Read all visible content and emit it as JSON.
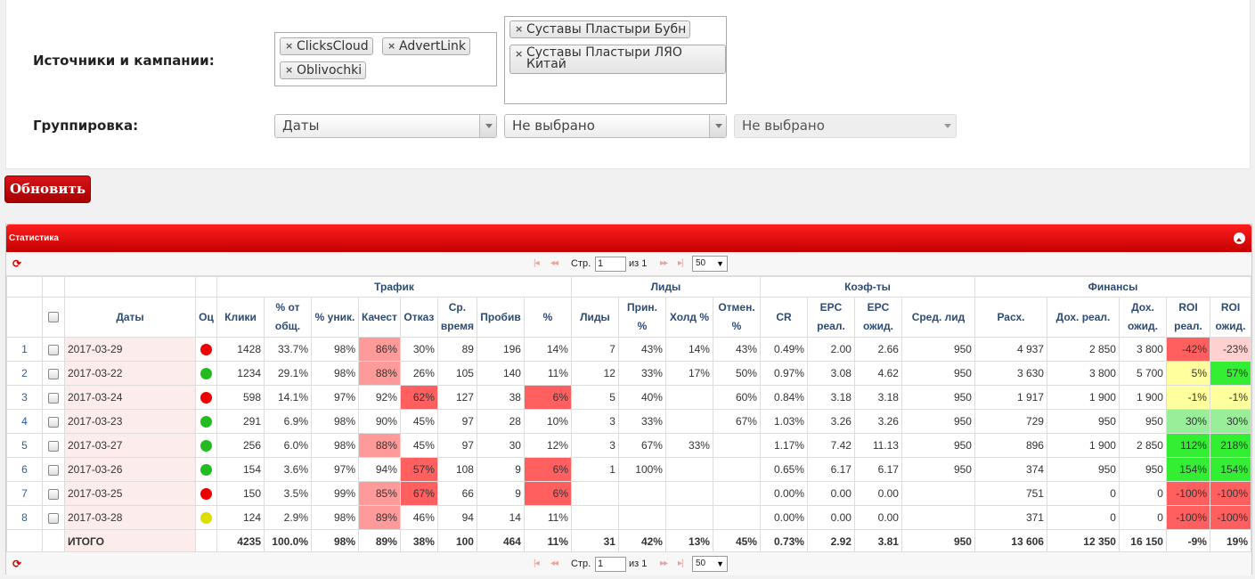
{
  "filters": {
    "sources_label": "Источники и кампании:",
    "grouping_label": "Группировка:",
    "sources": [
      "ClicksCloud",
      "AdvertLink",
      "Oblivochki"
    ],
    "campaigns": [
      "Суставы Пластыри Бубн",
      "Суставы Пластыри ЛЯО Китай"
    ],
    "group1": "Даты",
    "group2": "Не выбрано",
    "group3": "Не выбрано"
  },
  "update_button": "Обновить",
  "panel": {
    "title": "Статистика"
  },
  "pager": {
    "page_label": "Стр.",
    "page_value": "1",
    "of_label": "из 1",
    "page_size": "50"
  },
  "colors": {
    "bad": "#ff5f5f",
    "bad_light": "#ff9a9a",
    "bad_pale": "#ffd0d0",
    "warn": "#ffff9e",
    "good": "#33ee33",
    "good_light": "#99ee99",
    "dot_red": "#ee0000",
    "dot_green": "#22bb22",
    "dot_yellow": "#dddd00"
  },
  "table": {
    "groups": [
      "Трафик",
      "Лиды",
      "Коэф-ты",
      "Финансы"
    ],
    "columns": [
      "Даты",
      "Оц",
      "Клики",
      "% от общ.",
      "% уник.",
      "Качест",
      "Отказ",
      "Ср. время",
      "Пробив",
      "%",
      "Лиды",
      "Прин. %",
      "Холд %",
      "Отмен. %",
      "CR",
      "EPC реал.",
      "EPC ожид.",
      "Сред. лид",
      "Расх.",
      "Дох. реал.",
      "Дох. ожид.",
      "ROI реал.",
      "ROI ожид."
    ],
    "rows": [
      {
        "n": "1",
        "date": "2017-03-29",
        "dot": "red",
        "clicks": "1428",
        "pct": "33.7%",
        "uniq": "98%",
        "qual": "86%",
        "bounce": "30%",
        "time": "89",
        "prob": "196",
        "pp": "14%",
        "leads": "7",
        "acc": "43%",
        "hold": "14%",
        "canc": "43%",
        "cr": "0.49%",
        "epcr": "2.00",
        "epce": "2.66",
        "avg": "950",
        "exp": "4 937",
        "incr": "2 850",
        "ince": "3 800",
        "roir": "-42%",
        "roie": "-23%"
      },
      {
        "n": "2",
        "date": "2017-03-22",
        "dot": "green",
        "clicks": "1234",
        "pct": "29.1%",
        "uniq": "98%",
        "qual": "88%",
        "bounce": "26%",
        "time": "105",
        "prob": "140",
        "pp": "11%",
        "leads": "12",
        "acc": "33%",
        "hold": "17%",
        "canc": "50%",
        "cr": "0.97%",
        "epcr": "3.08",
        "epce": "4.62",
        "avg": "950",
        "exp": "3 630",
        "incr": "3 800",
        "ince": "5 700",
        "roir": "5%",
        "roie": "57%"
      },
      {
        "n": "3",
        "date": "2017-03-24",
        "dot": "red",
        "clicks": "598",
        "pct": "14.1%",
        "uniq": "97%",
        "qual": "92%",
        "bounce": "62%",
        "time": "127",
        "prob": "38",
        "pp": "6%",
        "leads": "5",
        "acc": "40%",
        "hold": "",
        "canc": "60%",
        "cr": "0.84%",
        "epcr": "3.18",
        "epce": "3.18",
        "avg": "950",
        "exp": "1 917",
        "incr": "1 900",
        "ince": "1 900",
        "roir": "-1%",
        "roie": "-1%"
      },
      {
        "n": "4",
        "date": "2017-03-23",
        "dot": "green",
        "clicks": "291",
        "pct": "6.9%",
        "uniq": "98%",
        "qual": "90%",
        "bounce": "45%",
        "time": "97",
        "prob": "28",
        "pp": "10%",
        "leads": "3",
        "acc": "33%",
        "hold": "",
        "canc": "67%",
        "cr": "1.03%",
        "epcr": "3.26",
        "epce": "3.26",
        "avg": "950",
        "exp": "729",
        "incr": "950",
        "ince": "950",
        "roir": "30%",
        "roie": "30%"
      },
      {
        "n": "5",
        "date": "2017-03-27",
        "dot": "green",
        "clicks": "256",
        "pct": "6.0%",
        "uniq": "98%",
        "qual": "88%",
        "bounce": "45%",
        "time": "97",
        "prob": "30",
        "pp": "12%",
        "leads": "3",
        "acc": "67%",
        "hold": "33%",
        "canc": "",
        "cr": "1.17%",
        "epcr": "7.42",
        "epce": "11.13",
        "avg": "950",
        "exp": "896",
        "incr": "1 900",
        "ince": "2 850",
        "roir": "112%",
        "roie": "218%"
      },
      {
        "n": "6",
        "date": "2017-03-26",
        "dot": "green",
        "clicks": "154",
        "pct": "3.6%",
        "uniq": "97%",
        "qual": "94%",
        "bounce": "57%",
        "time": "108",
        "prob": "9",
        "pp": "6%",
        "leads": "1",
        "acc": "100%",
        "hold": "",
        "canc": "",
        "cr": "0.65%",
        "epcr": "6.17",
        "epce": "6.17",
        "avg": "950",
        "exp": "374",
        "incr": "950",
        "ince": "950",
        "roir": "154%",
        "roie": "154%"
      },
      {
        "n": "7",
        "date": "2017-03-25",
        "dot": "red",
        "clicks": "150",
        "pct": "3.5%",
        "uniq": "99%",
        "qual": "85%",
        "bounce": "67%",
        "time": "66",
        "prob": "9",
        "pp": "6%",
        "leads": "",
        "acc": "",
        "hold": "",
        "canc": "",
        "cr": "0.00%",
        "epcr": "0.00",
        "epce": "0.00",
        "avg": "",
        "exp": "751",
        "incr": "0",
        "ince": "0",
        "roir": "-100%",
        "roie": "-100%"
      },
      {
        "n": "8",
        "date": "2017-03-28",
        "dot": "yellow",
        "clicks": "124",
        "pct": "2.9%",
        "uniq": "98%",
        "qual": "89%",
        "bounce": "46%",
        "time": "94",
        "prob": "14",
        "pp": "11%",
        "leads": "",
        "acc": "",
        "hold": "",
        "canc": "",
        "cr": "0.00%",
        "epcr": "0.00",
        "epce": "0.00",
        "avg": "",
        "exp": "371",
        "incr": "0",
        "ince": "0",
        "roir": "-100%",
        "roie": "-100%"
      }
    ],
    "total": {
      "label": "ИТОГО",
      "clicks": "4235",
      "pct": "100.0%",
      "uniq": "98%",
      "qual": "89%",
      "bounce": "38%",
      "time": "100",
      "prob": "464",
      "pp": "11%",
      "leads": "31",
      "acc": "42%",
      "hold": "13%",
      "canc": "45%",
      "cr": "0.73%",
      "epcr": "2.92",
      "epce": "3.81",
      "avg": "950",
      "exp": "13 606",
      "incr": "12 350",
      "ince": "16 150",
      "roir": "-9%",
      "roie": "19%"
    }
  },
  "cell_colors": {
    "qual": [
      "bad_light",
      "bad_light",
      "",
      "",
      "bad_light",
      "",
      "bad_light",
      "bad_light"
    ],
    "bounce": [
      "",
      "",
      "bad",
      "",
      "",
      "bad",
      "bad",
      ""
    ],
    "pp": [
      "",
      "",
      "bad",
      "",
      "",
      "bad",
      "bad",
      ""
    ],
    "roir": [
      "bad",
      "warn",
      "warn",
      "good_light",
      "good",
      "good",
      "bad",
      "bad"
    ],
    "roie": [
      "bad_pale",
      "good",
      "warn",
      "good_light",
      "good",
      "good",
      "bad",
      "bad"
    ]
  }
}
